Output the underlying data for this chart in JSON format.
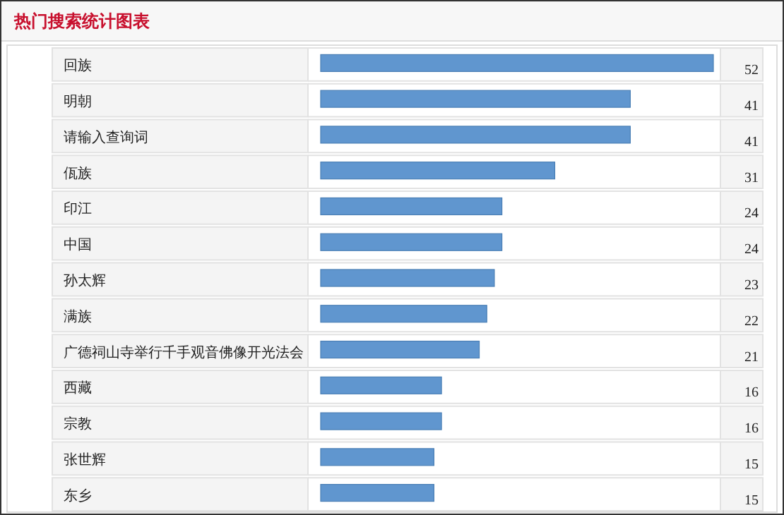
{
  "chart_data": {
    "type": "bar",
    "orientation": "horizontal",
    "title": "热门搜索统计图表",
    "data_labels": true,
    "color": "#6096cf",
    "categories": [
      "回族",
      "明朝",
      "请输入查询词",
      "佤族",
      "印江",
      "中国",
      "孙太辉",
      "满族",
      "广德祠山寺举行千手观音佛像开光法会",
      "西藏",
      "宗教",
      "张世辉",
      "东乡"
    ],
    "values": [
      52,
      41,
      41,
      31,
      24,
      24,
      23,
      22,
      21,
      16,
      16,
      15,
      15
    ]
  }
}
